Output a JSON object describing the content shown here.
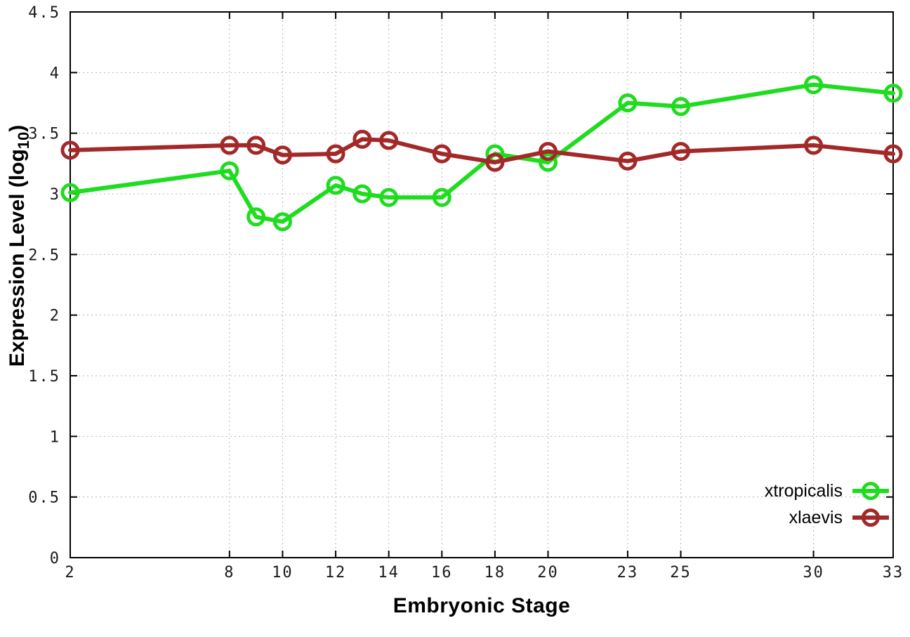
{
  "chart_data": {
    "type": "line",
    "title": "",
    "xlabel": "Embryonic Stage",
    "ylabel_prefix": "Expression Level (log",
    "ylabel_subscript": "10",
    "ylabel_suffix": ")",
    "xlim": [
      2,
      33
    ],
    "ylim": [
      0,
      4.5
    ],
    "grid": true,
    "legend_position": "bottom-right",
    "xticks": [
      2,
      8,
      10,
      12,
      14,
      16,
      18,
      20,
      23,
      25,
      30,
      33
    ],
    "yticks": [
      0,
      0.5,
      1,
      1.5,
      2,
      2.5,
      3,
      3.5,
      4,
      4.5
    ],
    "x": [
      2,
      8,
      9,
      10,
      12,
      13,
      14,
      16,
      18,
      20,
      23,
      25,
      30,
      33
    ],
    "series": [
      {
        "name": "xtropicalis",
        "color": "#1edc1e",
        "values": [
          3.01,
          3.19,
          2.81,
          2.77,
          3.07,
          3.0,
          2.97,
          2.97,
          3.33,
          3.26,
          3.75,
          3.72,
          3.9,
          3.83
        ]
      },
      {
        "name": "xlaevis",
        "color": "#a32929",
        "values": [
          3.36,
          3.4,
          3.4,
          3.32,
          3.33,
          3.45,
          3.44,
          3.33,
          3.26,
          3.35,
          3.27,
          3.35,
          3.4,
          3.33
        ]
      }
    ],
    "colors": {
      "axis": "#000000",
      "grid": "#b4b4b4",
      "background": "#ffffff"
    }
  }
}
